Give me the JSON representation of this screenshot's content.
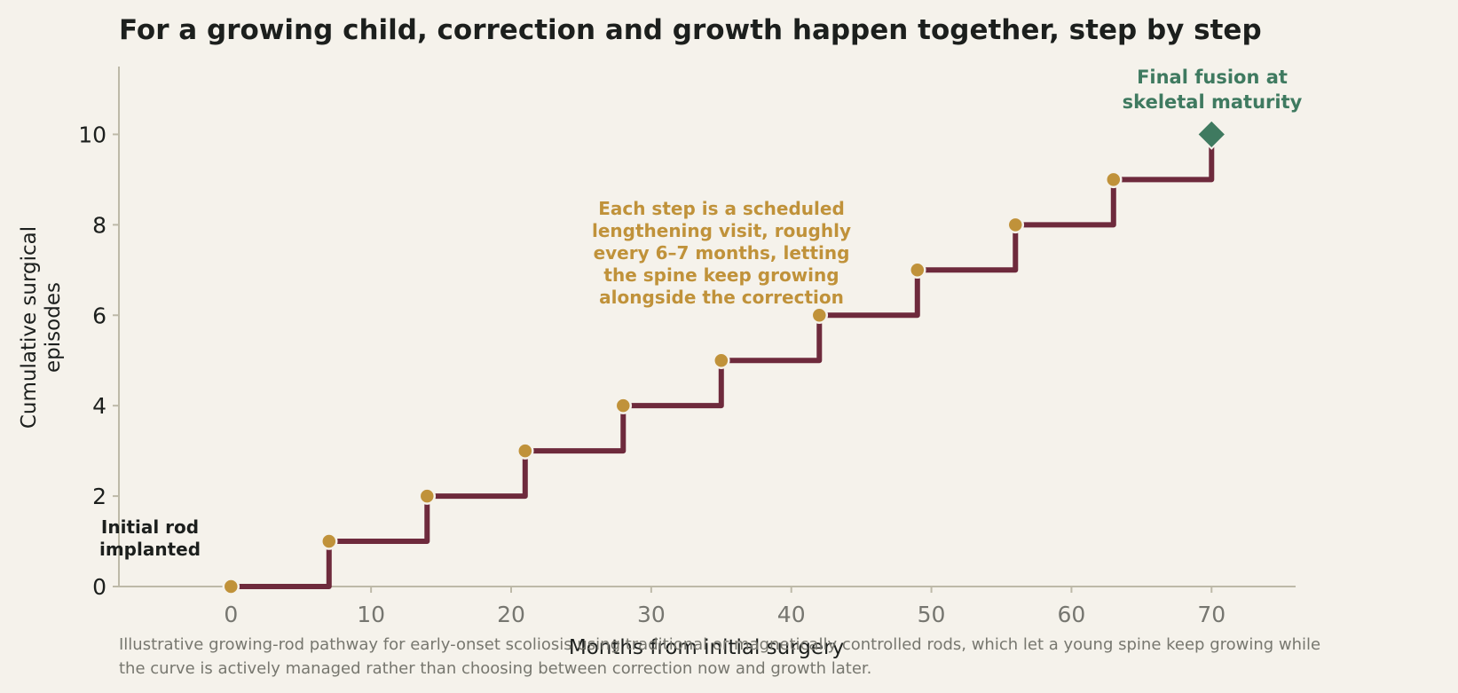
{
  "title": "For a growing child, correction and growth happen together, step by step",
  "caption_lines": [
    "Illustrative growing-rod pathway for early-onset scoliosis using traditional or magnetically controlled rods, which let a young spine keep growing while",
    "the curve is actively managed rather than choosing between correction now and growth later."
  ],
  "colors": {
    "step_line": "#6e2a3c",
    "visit_marker": "#c0923a",
    "final_marker": "#3f7a60",
    "axis": "#bdb9a8",
    "background": "#f5f2eb"
  },
  "chart_data": {
    "type": "line",
    "style": "step-post",
    "xlabel": "Months from initial surgery",
    "ylabel": "Cumulative surgical episodes",
    "xlim": [
      -8,
      76
    ],
    "ylim": [
      0,
      11.5
    ],
    "xticks": [
      0,
      10,
      20,
      30,
      40,
      50,
      60,
      70
    ],
    "yticks": [
      0,
      2,
      4,
      6,
      8,
      10
    ],
    "grid": false,
    "x": [
      0,
      7,
      14,
      21,
      28,
      35,
      42,
      49,
      56,
      63,
      70
    ],
    "y": [
      0,
      1,
      2,
      3,
      4,
      5,
      6,
      7,
      8,
      9,
      10
    ],
    "annotations": {
      "start": [
        "Initial rod",
        "implanted"
      ],
      "middle": [
        "Each step is a scheduled",
        "lengthening visit, roughly",
        "every 6–7 months, letting",
        "the spine keep growing",
        "alongside the correction"
      ],
      "end": [
        "Final fusion at",
        "skeletal maturity"
      ]
    }
  }
}
